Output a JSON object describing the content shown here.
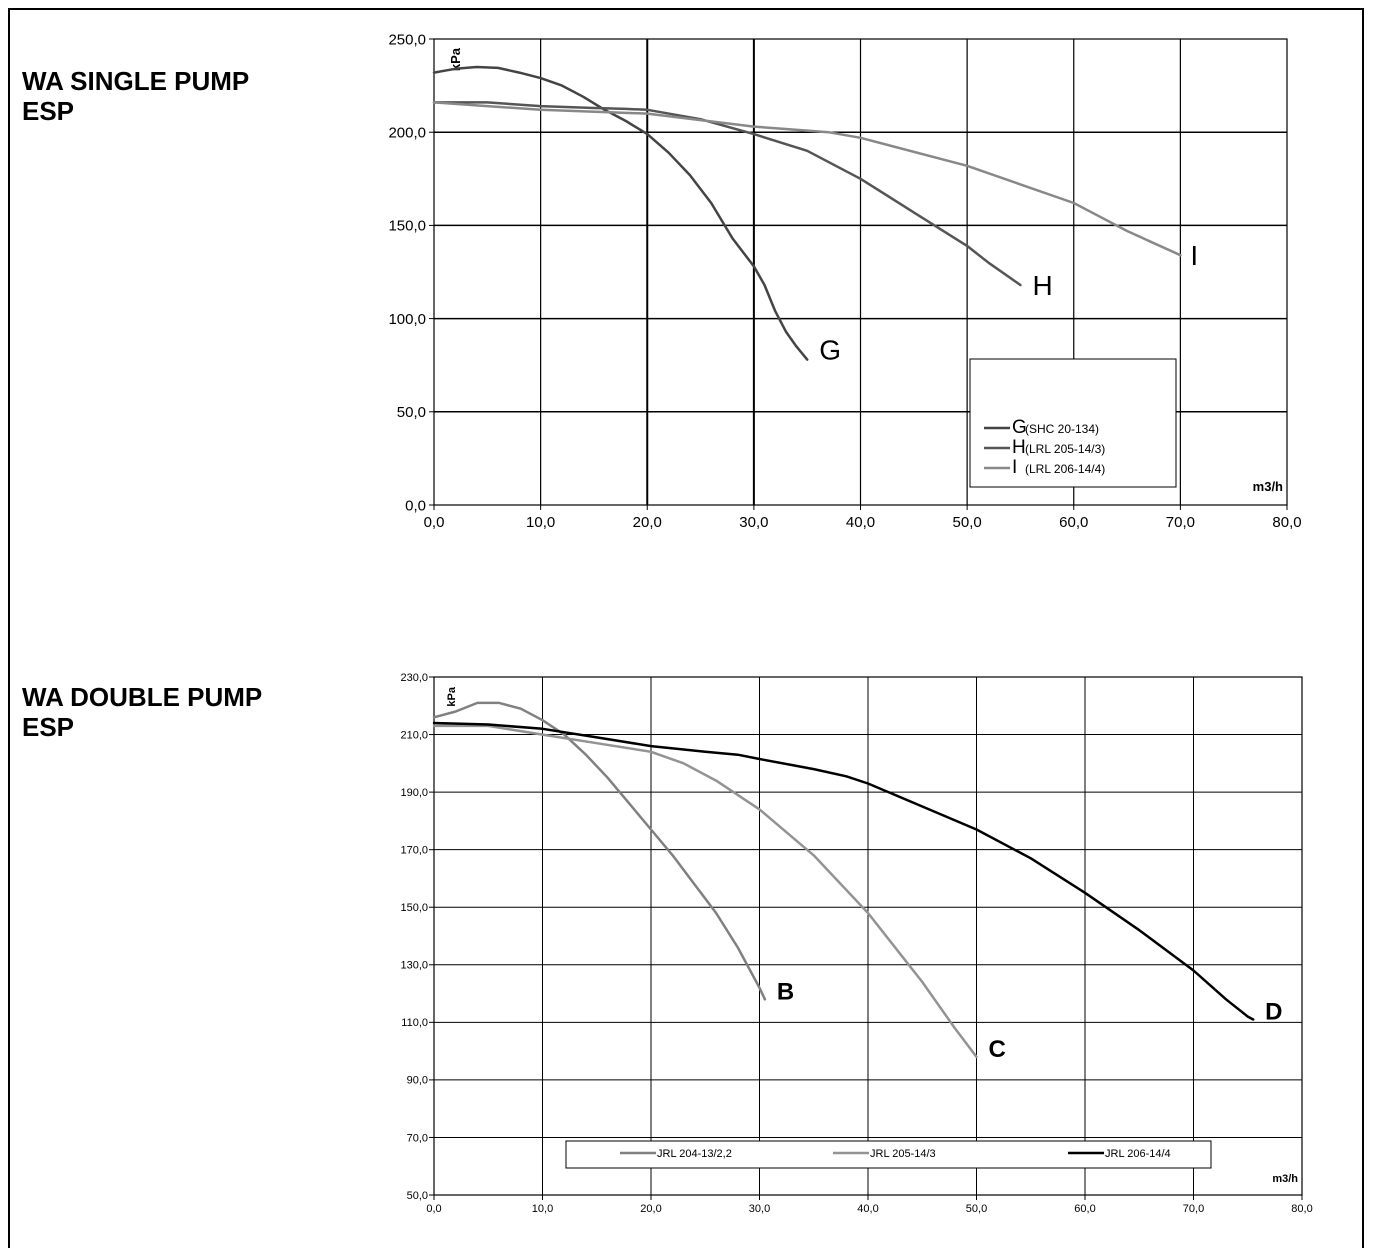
{
  "sections": [
    {
      "heading_line1": "WA SINGLE PUMP",
      "heading_line2": "ESP"
    },
    {
      "heading_line1": "WA DOUBLE PUMP",
      "heading_line2": "ESP"
    }
  ],
  "chart_data": [
    {
      "type": "line",
      "title": "WA SINGLE PUMP ESP",
      "xlabel": "m3/h",
      "ylabel": "kPa",
      "xlim": [
        0,
        80
      ],
      "ylim": [
        0,
        250
      ],
      "x_ticks": [
        "0,0",
        "10,0",
        "20,0",
        "30,0",
        "40,0",
        "50,0",
        "60,0",
        "70,0",
        "80,0"
      ],
      "y_ticks": [
        "0,0",
        "50,0",
        "100,0",
        "150,0",
        "200,0",
        "250,0"
      ],
      "grid": true,
      "legend": {
        "placement": "bottom-right",
        "items": [
          {
            "letter": "G",
            "model": "(SHC 20-134)"
          },
          {
            "letter": "H",
            "model": "(LRL 205-14/3)"
          },
          {
            "letter": "I",
            "model": "(LRL 206-14/4)"
          }
        ]
      },
      "series": [
        {
          "name": "G",
          "color": "#444444",
          "points": [
            [
              0,
              232
            ],
            [
              1,
              233
            ],
            [
              2,
              234
            ],
            [
              4,
              235
            ],
            [
              6,
              234.5
            ],
            [
              8,
              232
            ],
            [
              10,
              229
            ],
            [
              12,
              225
            ],
            [
              14,
              219
            ],
            [
              16,
              212
            ],
            [
              18,
              206
            ],
            [
              20,
              199
            ],
            [
              22,
              189
            ],
            [
              24,
              177
            ],
            [
              26,
              162
            ],
            [
              28,
              143
            ],
            [
              30,
              128
            ],
            [
              31,
              118
            ],
            [
              32,
              104
            ],
            [
              33,
              93
            ],
            [
              34,
              85
            ],
            [
              35,
              78
            ]
          ]
        },
        {
          "name": "H",
          "color": "#555555",
          "points": [
            [
              0,
              216
            ],
            [
              5,
              216
            ],
            [
              10,
              214
            ],
            [
              15,
              213
            ],
            [
              18,
              212.5
            ],
            [
              20,
              212
            ],
            [
              25,
              207
            ],
            [
              30,
              199
            ],
            [
              35,
              190
            ],
            [
              40,
              175
            ],
            [
              45,
              157
            ],
            [
              50,
              139
            ],
            [
              52,
              130
            ],
            [
              55,
              118
            ]
          ]
        },
        {
          "name": "I",
          "color": "#888888",
          "points": [
            [
              0,
              216
            ],
            [
              5,
              214
            ],
            [
              10,
              212
            ],
            [
              20,
              210
            ],
            [
              30,
              203
            ],
            [
              37,
              200
            ],
            [
              40,
              197
            ],
            [
              50,
              182
            ],
            [
              55,
              172
            ],
            [
              60,
              162
            ],
            [
              62,
              156
            ],
            [
              65,
              147
            ],
            [
              70,
              134
            ]
          ]
        }
      ],
      "end_labels": [
        "G",
        "H",
        "I"
      ]
    },
    {
      "type": "line",
      "title": "WA DOUBLE PUMP ESP",
      "xlabel": "m3/h",
      "ylabel": "kPa",
      "xlim": [
        0,
        80
      ],
      "ylim": [
        50,
        230
      ],
      "x_ticks": [
        "0,0",
        "10,0",
        "20,0",
        "30,0",
        "40,0",
        "50,0",
        "60,0",
        "70,0",
        "80,0"
      ],
      "y_ticks": [
        "50,0",
        "70,0",
        "90,0",
        "110,0",
        "130,0",
        "150,0",
        "170,0",
        "190,0",
        "210,0",
        "230,0"
      ],
      "grid": true,
      "legend": {
        "placement": "bottom",
        "items": [
          "JRL 204-13/2,2",
          "JRL 205-14/3",
          "JRL 206-14/4"
        ]
      },
      "series": [
        {
          "name": "JRL 204-13/2,2",
          "color": "#808080",
          "points": [
            [
              0,
              216
            ],
            [
              2,
              218
            ],
            [
              4,
              221
            ],
            [
              6,
              221
            ],
            [
              8,
              219
            ],
            [
              10,
              215
            ],
            [
              12,
              210
            ],
            [
              14,
              203
            ],
            [
              16,
              195
            ],
            [
              18,
              186
            ],
            [
              20,
              177
            ],
            [
              22,
              168
            ],
            [
              24,
              158
            ],
            [
              26,
              148
            ],
            [
              28,
              136
            ],
            [
              30,
              122
            ],
            [
              30.5,
              118
            ]
          ]
        },
        {
          "name": "JRL 205-14/3",
          "color": "#939393",
          "points": [
            [
              0,
              213
            ],
            [
              5,
              213
            ],
            [
              10,
              210
            ],
            [
              15,
              207
            ],
            [
              20,
              204
            ],
            [
              23,
              200
            ],
            [
              26,
              194
            ],
            [
              30,
              184
            ],
            [
              35,
              168
            ],
            [
              40,
              148
            ],
            [
              45,
              124
            ],
            [
              48,
              108
            ],
            [
              50,
              98
            ]
          ]
        },
        {
          "name": "JRL 206-14/4",
          "color": "#000000",
          "points": [
            [
              0,
              214
            ],
            [
              5,
              213.5
            ],
            [
              10,
              212
            ],
            [
              15,
              209
            ],
            [
              20,
              206
            ],
            [
              25,
              204
            ],
            [
              28,
              203
            ],
            [
              30,
              201.5
            ],
            [
              35,
              198
            ],
            [
              38,
              195.5
            ],
            [
              40,
              193
            ],
            [
              45,
              185
            ],
            [
              50,
              177
            ],
            [
              55,
              167
            ],
            [
              60,
              155
            ],
            [
              65,
              142
            ],
            [
              70,
              128
            ],
            [
              73,
              118
            ],
            [
              75,
              112
            ],
            [
              75.5,
              111
            ]
          ]
        }
      ],
      "end_labels": [
        "B",
        "C",
        "D"
      ]
    }
  ]
}
